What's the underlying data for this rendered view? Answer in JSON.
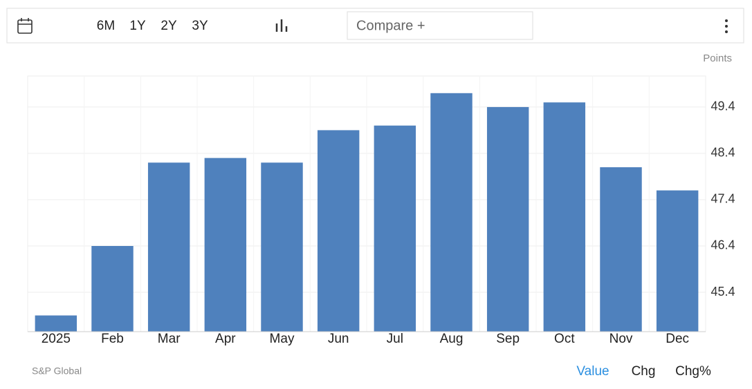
{
  "toolbar": {
    "ranges": [
      "6M",
      "1Y",
      "2Y",
      "3Y"
    ],
    "compare": "Compare +"
  },
  "footer": {
    "source": "S&P Global",
    "tabs": [
      "Value",
      "Chg",
      "Chg%"
    ]
  },
  "chart_data": {
    "type": "bar",
    "y_label": "Points",
    "categories": [
      "2025",
      "Feb",
      "Mar",
      "Apr",
      "May",
      "Jun",
      "Jul",
      "Aug",
      "Sep",
      "Oct",
      "Nov",
      "Dec"
    ],
    "values": [
      44.9,
      46.4,
      48.2,
      48.3,
      48.2,
      48.9,
      49.0,
      49.7,
      49.4,
      49.5,
      48.1,
      47.6
    ],
    "color": "#4f81bd",
    "ylim": [
      44.55,
      50.07
    ],
    "yticks": [
      45.4,
      46.4,
      47.4,
      48.4,
      49.4
    ],
    "grid": true
  }
}
